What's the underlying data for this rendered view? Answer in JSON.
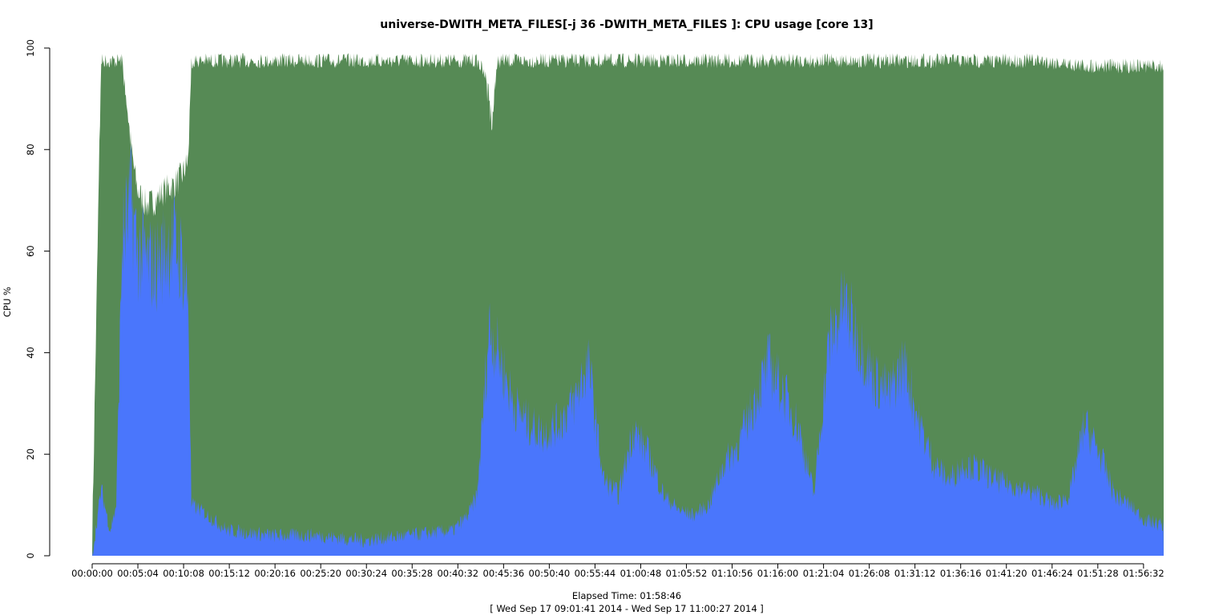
{
  "chart_data": {
    "type": "area",
    "title": "universe-DWITH_META_FILES[-j 36 -DWITH_META_FILES ]: CPU usage [core 13]",
    "ylabel": "CPU %",
    "xlabel": "Elapsed Time: 01:58:46",
    "subtitle": "[ Wed Sep 17 09:01:41 2014 - Wed Sep 17 11:00:27 2014 ]",
    "ylim": [
      0,
      100
    ],
    "xlim_seconds": [
      0,
      7126
    ],
    "y_ticks": [
      0,
      20,
      40,
      60,
      80,
      100
    ],
    "x_ticks": [
      "00:00:00",
      "00:05:04",
      "00:10:08",
      "00:15:12",
      "00:20:16",
      "00:25:20",
      "00:30:24",
      "00:35:28",
      "00:40:32",
      "00:45:36",
      "00:50:40",
      "00:55:44",
      "01:00:48",
      "01:05:52",
      "01:10:56",
      "01:16:00",
      "01:21:04",
      "01:26:08",
      "01:31:12",
      "01:36:16",
      "01:41:20",
      "01:46:24",
      "01:51:28",
      "01:56:32"
    ],
    "grid": false,
    "legend": "none",
    "colors": {
      "total": "#568a55",
      "user": "#4a76fc",
      "spike": "#3fd6e6"
    },
    "series": [
      {
        "name": "",
        "key": "total",
        "x_seconds": [
          0,
          60,
          120,
          200,
          260,
          300,
          360,
          420,
          480,
          540,
          600,
          640,
          660,
          720,
          900,
          1200,
          1500,
          1800,
          2100,
          2400,
          2500,
          2560,
          2600,
          2660,
          2700,
          2760,
          3000,
          3300,
          3600,
          3900,
          4200,
          4500,
          4800,
          5100,
          5400,
          5700,
          6000,
          6300,
          6600,
          6900,
          7126
        ],
        "values": [
          3,
          99,
          99,
          99,
          80,
          72,
          69,
          70,
          72,
          73,
          75,
          78,
          99,
          99,
          99,
          99,
          99,
          99,
          99,
          99,
          99,
          99,
          97,
          85,
          99,
          99,
          99,
          99,
          99,
          99,
          99,
          99,
          99,
          99,
          99,
          99,
          99,
          99,
          98,
          98,
          98
        ]
      },
      {
        "name": "",
        "key": "user",
        "x_seconds": [
          0,
          60,
          120,
          160,
          200,
          260,
          300,
          360,
          420,
          480,
          540,
          600,
          640,
          660,
          720,
          900,
          1200,
          1500,
          1800,
          2100,
          2400,
          2500,
          2560,
          2600,
          2640,
          2700,
          2800,
          2900,
          3000,
          3100,
          3200,
          3300,
          3400,
          3500,
          3600,
          3700,
          3800,
          3900,
          4000,
          4100,
          4200,
          4300,
          4400,
          4500,
          4600,
          4700,
          4800,
          4900,
          5000,
          5100,
          5200,
          5300,
          5400,
          5500,
          5600,
          5700,
          5800,
          5900,
          6000,
          6100,
          6200,
          6300,
          6400,
          6500,
          6600,
          6700,
          6800,
          6900,
          7000,
          7126
        ],
        "values": [
          0,
          13,
          5,
          10,
          62,
          70,
          60,
          58,
          57,
          60,
          62,
          58,
          50,
          10,
          9,
          5,
          4,
          4,
          3,
          4,
          5,
          8,
          12,
          28,
          45,
          40,
          30,
          26,
          24,
          26,
          30,
          38,
          15,
          12,
          25,
          20,
          12,
          9,
          8,
          10,
          18,
          22,
          30,
          38,
          32,
          25,
          12,
          42,
          50,
          42,
          35,
          32,
          38,
          26,
          18,
          15,
          18,
          17,
          15,
          14,
          13,
          12,
          10,
          12,
          26,
          20,
          12,
          10,
          7,
          6
        ]
      }
    ]
  }
}
